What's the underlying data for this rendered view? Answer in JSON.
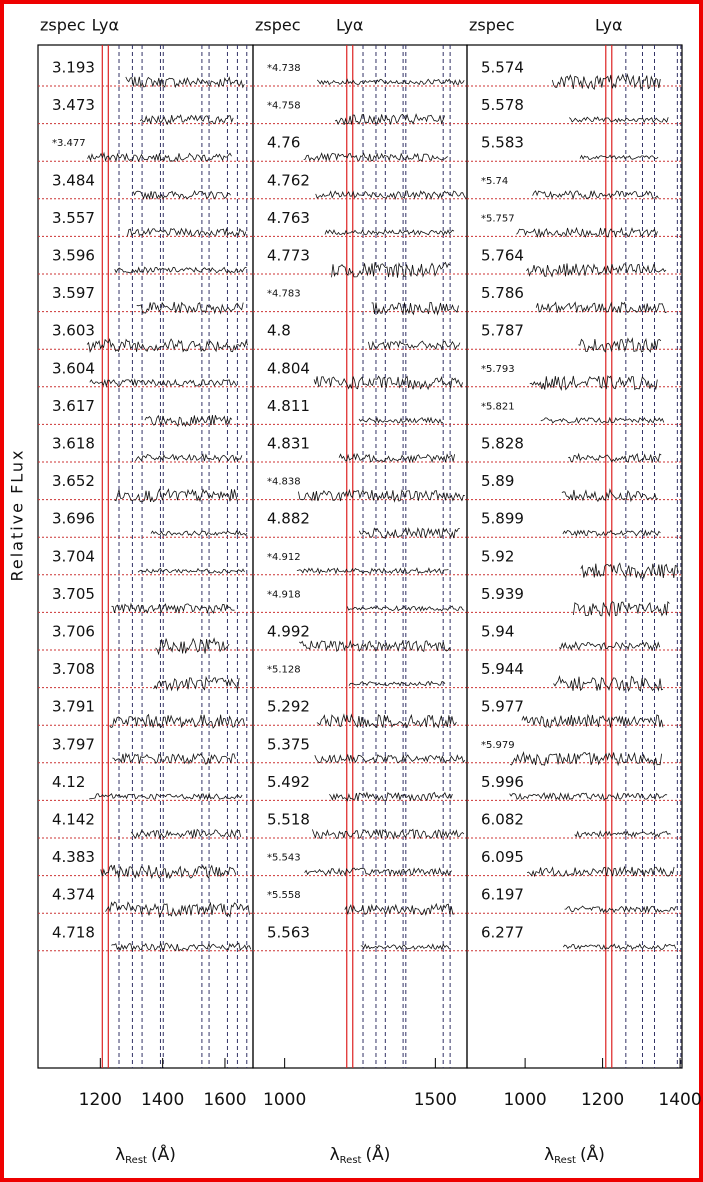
{
  "chart_data": [
    {
      "type": "line",
      "header": "zspec",
      "line_label": "Lyα",
      "categories": [
        "3.193",
        "3.473",
        "*3.477",
        "3.484",
        "3.557",
        "3.596",
        "3.597",
        "3.603",
        "3.604",
        "3.617",
        "3.618",
        "3.652",
        "3.696",
        "3.704",
        "3.705",
        "3.706",
        "3.708",
        "3.791",
        "3.797",
        "4.12",
        "4.142",
        "4.383",
        "4.374",
        "4.718"
      ],
      "xlim": [
        1000,
        1690
      ],
      "xticks": [
        1200,
        1400,
        1600
      ],
      "xlabel_symbol": "λ",
      "xlabel_sub": "Rest",
      "xlabel_unit": "(Å)"
    },
    {
      "type": "line",
      "header": "zspec",
      "line_label": "Lyα",
      "categories": [
        "*4.738",
        "*4.758",
        "4.76",
        "4.762",
        "4.763",
        "4.773",
        "*4.783",
        "4.8",
        "4.804",
        "4.811",
        "4.831",
        "*4.838",
        "4.882",
        "*4.912",
        "*4.918",
        "4.992",
        "*5.128",
        "5.292",
        "5.375",
        "5.492",
        "5.518",
        "*5.543",
        "*5.558",
        "5.563"
      ],
      "xlim": [
        895,
        1605
      ],
      "xticks": [
        1000,
        1500
      ],
      "xlabel_symbol": "λ",
      "xlabel_sub": "Rest",
      "xlabel_unit": "(Å)"
    },
    {
      "type": "line",
      "header": "zspec",
      "line_label": "Lyα",
      "categories": [
        "5.574",
        "5.578",
        "5.583",
        "*5.74",
        "*5.757",
        "5.764",
        "5.786",
        "5.787",
        "*5.793",
        "*5.821",
        "5.828",
        "5.89",
        "5.899",
        "5.92",
        "5.939",
        "5.94",
        "5.944",
        "5.977",
        "*5.979",
        "5.996",
        "6.082",
        "6.095",
        "6.197",
        "6.277"
      ],
      "xlim": [
        850,
        1405
      ],
      "xticks": [
        1000,
        1200,
        1400
      ],
      "xlabel_symbol": "λ",
      "xlabel_sub": "Rest",
      "xlabel_unit": "(Å)"
    }
  ],
  "lya": 1216,
  "metal_lines": [
    1260,
    1303,
    1334,
    1393,
    1402,
    1526,
    1549,
    1608,
    1640,
    1670
  ],
  "ylabel": "Relative FLux"
}
